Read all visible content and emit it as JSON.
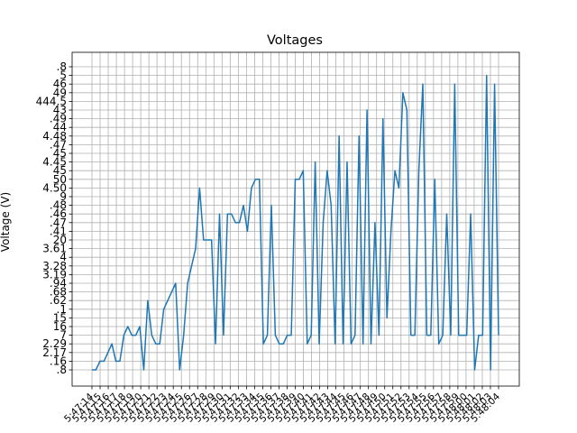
{
  "chart_data": {
    "type": "line",
    "title": "Voltages",
    "xlabel": "",
    "ylabel": "Voltage (V)",
    "grid": true,
    "y_categories": [
      ".8",
      ".16",
      "2.17",
      "2.29",
      "7",
      "16",
      "15",
      ".1",
      ".62",
      ".68",
      ".94",
      "3.19",
      "3.28",
      "4",
      "3.61",
      "20",
      ".41",
      ".47",
      ".46",
      ".48",
      "9",
      "4.50",
      "50",
      "45",
      "4.45",
      "45",
      ".47",
      "4.48",
      "44",
      ".49",
      "43",
      "444.5",
      "49",
      "46",
      "5",
      ".8"
    ],
    "x_labels": [
      "5:47:14",
      "5:47:15",
      "5:47:16",
      "5:47:17",
      "5:47:18",
      "5:47:19",
      "5:47:20",
      "5:47:21",
      "5:47:22",
      "5:47:23",
      "5:47:24",
      "5:47:25",
      "5:47:26",
      "5:47:27",
      "5:47:28",
      "5:47:29",
      "5:47:30",
      "5:47:31",
      "5:47:32",
      "5:47:33",
      "5:47:34",
      "5:47:35",
      "5:47:36",
      "5:47:37",
      "5:47:38",
      "5:47:39",
      "5:47:40",
      "5:47:41",
      "5:47:42",
      "5:47:43",
      "5:47:44",
      "5:47:45",
      "5:47:46",
      "5:47:47",
      "5:47:48",
      "5:47:49",
      "5:47:50",
      "5:47:51",
      "5:47:52",
      "5:47:53",
      "5:47:54",
      "5:47:55",
      "5:47:56",
      "5:47:57",
      "5:47:58",
      "5:47:59",
      "5:48:00",
      "5:48:01",
      "5:48:02",
      "5:48:03",
      "5:48:04"
    ],
    "x_tick_labels": [
      "5:47:14",
      "5:47:15",
      "5:47:16",
      "5:47:17",
      "5:47:18",
      "5:47:19",
      "5:47:20",
      "5:47:21",
      "5:47:22",
      "5:47:23",
      "5:47:24",
      "5:47:25",
      "5:47:26",
      "5:47:27",
      "5:47:28",
      "5:47:29",
      "5:47:30",
      "5:47:31",
      "5:47:32",
      "5:47:33",
      "5:47:34",
      "5:47:35",
      "5:47:36",
      "5:47:37",
      "5:47:38",
      "5:47:39",
      "5:47:40",
      "5:47:41",
      "5:47:42",
      "5:47:43",
      "5:47:44",
      "5:47:45",
      "5:47:46",
      "5:47:47",
      "5:47:48",
      "5:47:49",
      "5:47:50",
      "5:47:51",
      "5:47:52",
      "5:47:53",
      "5:47:54",
      "5:47:55",
      "5:47:56",
      "5:47:57",
      "5:47:58",
      "5:47:59",
      "5:48:00",
      "5:48:01",
      "5:48:02",
      "5:48:03",
      "5:48:04"
    ],
    "series": [
      {
        "y": [
          ".8",
          ".8",
          ".16",
          ".16",
          "2.17",
          "2.29",
          ".16",
          ".16",
          "7",
          "16",
          "7",
          "7",
          "16",
          "1",
          ".62",
          "7",
          "2.29",
          "2.29",
          ".1",
          ".62",
          ".68",
          ".94",
          ".8",
          "7",
          ".94",
          "3.28",
          "3.61",
          "4.50",
          "20",
          "20",
          "20",
          "2.29",
          ".46",
          "7",
          ".46",
          ".46",
          ".47",
          ".47",
          ".48",
          ".41",
          "4.50",
          "50",
          "50",
          "2.29",
          "7",
          ".48",
          "7",
          "2.29",
          "2.29",
          "7",
          "7",
          "50",
          "50",
          "45",
          "2.29",
          "7",
          "4.45",
          "2.29",
          ".47",
          "45",
          ".48",
          "2.29",
          "4.48",
          "2.29",
          "4.45",
          "2.29",
          "7",
          "4.48",
          "2.29",
          "43",
          "2.29",
          ".47",
          "7",
          ".49",
          "15",
          ".41",
          "45",
          "4.50",
          "49",
          "43",
          "7",
          "7",
          "45",
          "46",
          "7",
          "7",
          "50",
          "2.29",
          "7",
          ".46",
          "7",
          "46",
          "7",
          "7",
          "7",
          ".46",
          ".8",
          "7",
          "7",
          "5",
          ".8",
          "46",
          "7"
        ]
      }
    ],
    "color": "#1f77b4"
  }
}
